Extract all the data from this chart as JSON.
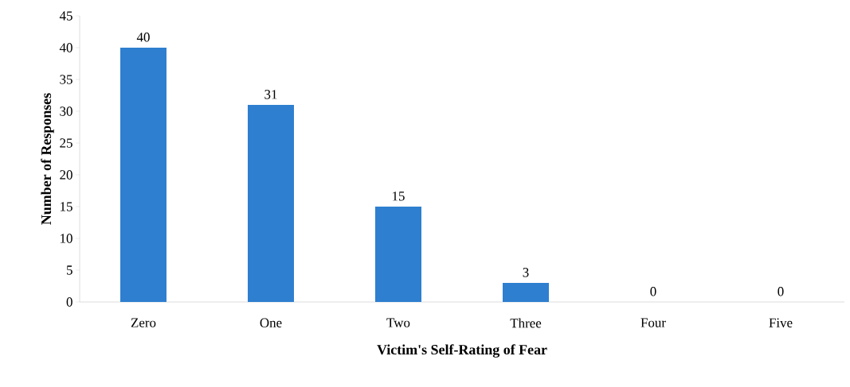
{
  "chart_data": {
    "type": "bar",
    "xlabel": "Victim's Self-Rating of Fear",
    "ylabel": "Number of Responses",
    "categories": [
      "Zero",
      "One",
      "Two",
      "Three",
      "Four",
      "Five"
    ],
    "values": [
      40,
      31,
      15,
      3,
      0,
      0
    ],
    "color": "#2e7fd0",
    "ylim": [
      0,
      45
    ],
    "yticks": [
      0,
      5,
      10,
      15,
      20,
      25,
      30,
      35,
      40,
      45
    ],
    "data_labels": true
  }
}
